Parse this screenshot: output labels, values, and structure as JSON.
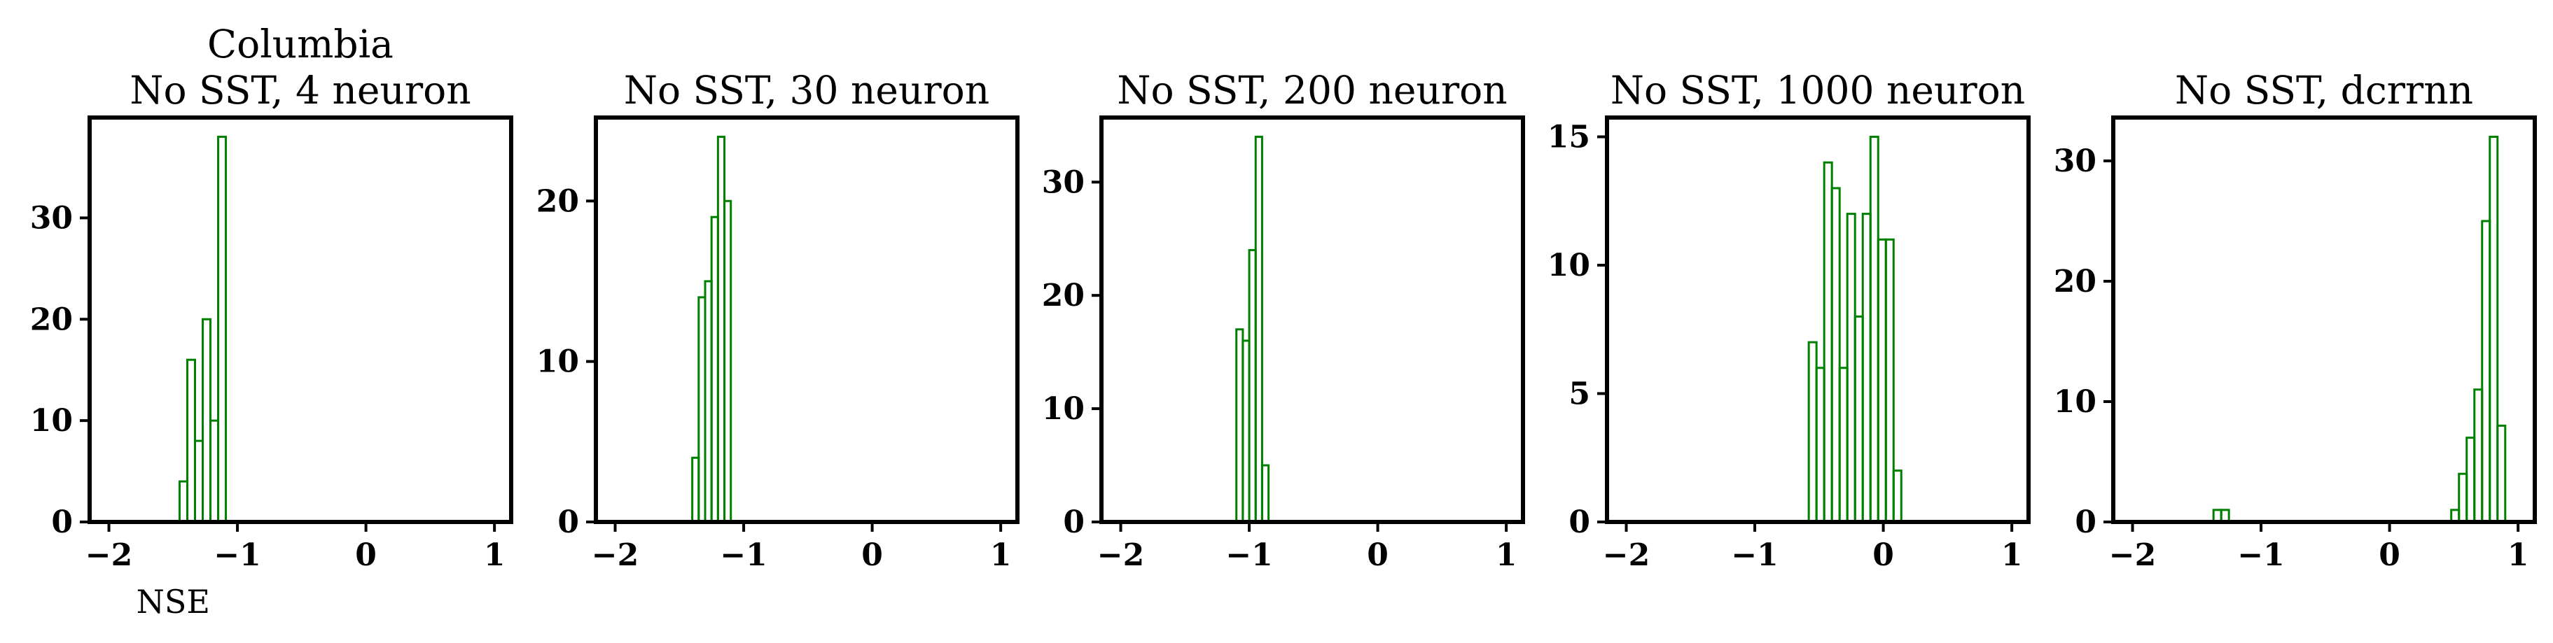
{
  "colors": {
    "histogram_edge": "#008000",
    "axes": "#000000",
    "background": "#ffffff"
  },
  "chart_data": [
    {
      "type": "histogram",
      "title": [
        "Columbia",
        "No SST, 4 neuron"
      ],
      "xlabel": "NSE",
      "ylabel": "",
      "xlim": [
        -2.15,
        1.13
      ],
      "ylim": [
        0,
        39.9
      ],
      "xticks": [
        -2,
        -1,
        0,
        1
      ],
      "xtick_labels": [
        "−2",
        "−1",
        "0",
        "1"
      ],
      "yticks": [
        0,
        10,
        20,
        30
      ],
      "ytick_labels": [
        "0",
        "10",
        "20",
        "30"
      ],
      "bin_width": 0.06,
      "bins": [
        {
          "x0": -1.45,
          "count": 4
        },
        {
          "x0": -1.39,
          "count": 16
        },
        {
          "x0": -1.33,
          "count": 8
        },
        {
          "x0": -1.27,
          "count": 20
        },
        {
          "x0": -1.21,
          "count": 10
        },
        {
          "x0": -1.15,
          "count": 38
        }
      ]
    },
    {
      "type": "histogram",
      "title": [
        "No SST, 30 neuron"
      ],
      "xlabel": "",
      "ylabel": "",
      "xlim": [
        -2.15,
        1.13
      ],
      "ylim": [
        0,
        25.2
      ],
      "xticks": [
        -2,
        -1,
        0,
        1
      ],
      "xtick_labels": [
        "−2",
        "−1",
        "0",
        "1"
      ],
      "yticks": [
        0,
        10,
        20
      ],
      "ytick_labels": [
        "0",
        "10",
        "20"
      ],
      "bin_width": 0.05,
      "bins": [
        {
          "x0": -1.4,
          "count": 4
        },
        {
          "x0": -1.35,
          "count": 14
        },
        {
          "x0": -1.3,
          "count": 15
        },
        {
          "x0": -1.25,
          "count": 19
        },
        {
          "x0": -1.2,
          "count": 24
        },
        {
          "x0": -1.15,
          "count": 20
        }
      ]
    },
    {
      "type": "histogram",
      "title": [
        "No SST, 200 neuron"
      ],
      "xlabel": "",
      "ylabel": "",
      "xlim": [
        -2.15,
        1.13
      ],
      "ylim": [
        0,
        35.7
      ],
      "xticks": [
        -2,
        -1,
        0,
        1
      ],
      "xtick_labels": [
        "−2",
        "−1",
        "0",
        "1"
      ],
      "yticks": [
        0,
        10,
        20,
        30
      ],
      "ytick_labels": [
        "0",
        "10",
        "20",
        "30"
      ],
      "bin_width": 0.05,
      "bins": [
        {
          "x0": -1.1,
          "count": 17
        },
        {
          "x0": -1.05,
          "count": 16
        },
        {
          "x0": -1.0,
          "count": 24
        },
        {
          "x0": -0.95,
          "count": 34
        },
        {
          "x0": -0.9,
          "count": 5
        }
      ]
    },
    {
      "type": "histogram",
      "title": [
        "No SST, 1000 neuron"
      ],
      "xlabel": "",
      "ylabel": "",
      "xlim": [
        -2.15,
        1.13
      ],
      "ylim": [
        0,
        15.75
      ],
      "xticks": [
        -2,
        -1,
        0,
        1
      ],
      "xtick_labels": [
        "−2",
        "−1",
        "0",
        "1"
      ],
      "yticks": [
        0,
        5,
        10,
        15
      ],
      "ytick_labels": [
        "0",
        "5",
        "10",
        "15"
      ],
      "bin_width": 0.06,
      "bins": [
        {
          "x0": -0.58,
          "count": 7
        },
        {
          "x0": -0.52,
          "count": 6
        },
        {
          "x0": -0.46,
          "count": 14
        },
        {
          "x0": -0.4,
          "count": 13
        },
        {
          "x0": -0.34,
          "count": 6
        },
        {
          "x0": -0.28,
          "count": 12
        },
        {
          "x0": -0.22,
          "count": 8
        },
        {
          "x0": -0.16,
          "count": 12
        },
        {
          "x0": -0.1,
          "count": 15
        },
        {
          "x0": -0.04,
          "count": 11
        },
        {
          "x0": 0.02,
          "count": 11
        },
        {
          "x0": 0.08,
          "count": 2
        }
      ]
    },
    {
      "type": "histogram",
      "title": [
        "No SST, dcrrnn"
      ],
      "xlabel": "",
      "ylabel": "",
      "xlim": [
        -2.15,
        1.13
      ],
      "ylim": [
        0,
        33.6
      ],
      "xticks": [
        -2,
        -1,
        0,
        1
      ],
      "xtick_labels": [
        "−2",
        "−1",
        "0",
        "1"
      ],
      "yticks": [
        0,
        10,
        20,
        30
      ],
      "ytick_labels": [
        "0",
        "10",
        "20",
        "30"
      ],
      "bin_width": 0.06,
      "bins": [
        {
          "x0": -1.37,
          "count": 1
        },
        {
          "x0": -1.31,
          "count": 1
        },
        {
          "x0": 0.48,
          "count": 1
        },
        {
          "x0": 0.54,
          "count": 4
        },
        {
          "x0": 0.6,
          "count": 7
        },
        {
          "x0": 0.66,
          "count": 11
        },
        {
          "x0": 0.72,
          "count": 25
        },
        {
          "x0": 0.78,
          "count": 32
        },
        {
          "x0": 0.84,
          "count": 8
        }
      ]
    }
  ]
}
